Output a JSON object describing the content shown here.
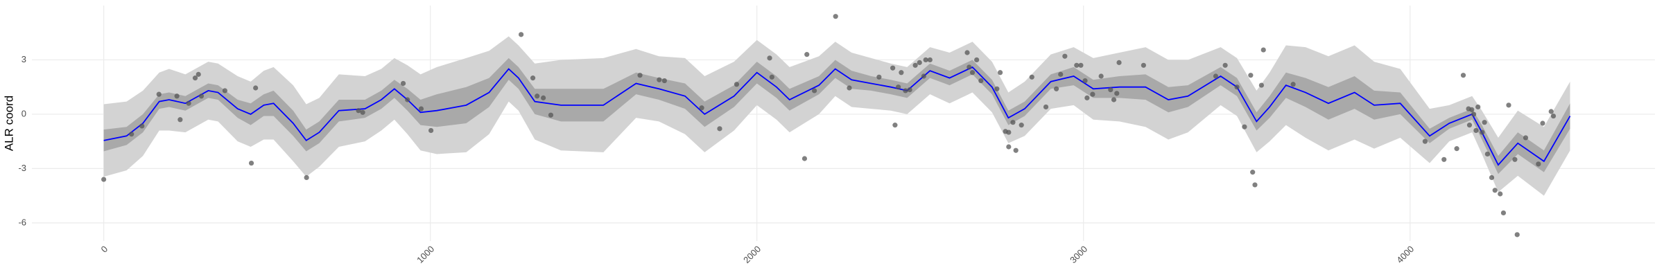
{
  "chart_data": {
    "type": "line",
    "y_label": "ALR coord",
    "xlim": [
      -220,
      4750
    ],
    "ylim": [
      -7,
      6
    ],
    "xticks": [
      0,
      1000,
      2000,
      3000,
      4000
    ],
    "yticks": [
      -6,
      -3,
      0,
      3
    ],
    "grid": true,
    "x": [
      0,
      70,
      120,
      170,
      200,
      250,
      320,
      350,
      410,
      450,
      490,
      520,
      580,
      620,
      660,
      720,
      800,
      850,
      890,
      930,
      970,
      1020,
      1110,
      1180,
      1240,
      1270,
      1320,
      1400,
      1530,
      1630,
      1700,
      1780,
      1840,
      1930,
      2000,
      2060,
      2100,
      2190,
      2240,
      2290,
      2350,
      2410,
      2460,
      2530,
      2590,
      2660,
      2720,
      2770,
      2820,
      2900,
      2970,
      3030,
      3110,
      3190,
      3260,
      3320,
      3420,
      3470,
      3530,
      3570,
      3620,
      3680,
      3750,
      3830,
      3890,
      3970,
      4060,
      4120,
      4190,
      4220,
      4270,
      4330,
      4410,
      4490
    ],
    "series": [
      {
        "color": "#0000ff",
        "values": [
          -1.45,
          -1.2,
          -0.5,
          0.7,
          0.8,
          0.6,
          1.3,
          1.2,
          0.3,
          0.0,
          0.5,
          0.6,
          -0.5,
          -1.45,
          -1.0,
          0.2,
          0.3,
          0.8,
          1.4,
          0.8,
          0.1,
          0.2,
          0.5,
          1.2,
          2.5,
          2.0,
          0.7,
          0.5,
          0.5,
          1.7,
          1.4,
          1.0,
          0.0,
          1.0,
          2.3,
          1.5,
          0.8,
          1.6,
          2.5,
          1.9,
          1.7,
          1.5,
          1.3,
          2.4,
          2.0,
          2.6,
          1.5,
          -0.2,
          0.3,
          1.8,
          2.1,
          1.4,
          1.5,
          1.5,
          0.8,
          1.0,
          2.1,
          1.5,
          -0.4,
          0.4,
          1.6,
          1.2,
          0.6,
          1.2,
          0.5,
          0.6,
          -1.2,
          -0.5,
          0.0,
          -1.0,
          -2.8,
          -1.6,
          -2.6,
          -0.1
        ]
      }
    ],
    "bands": [
      {
        "color": "#d3d3d3",
        "lower": [
          -3.45,
          -3.1,
          -2.3,
          -0.9,
          -0.9,
          -1.0,
          -0.3,
          -0.4,
          -1.5,
          -1.8,
          -1.4,
          -1.4,
          -2.6,
          -3.45,
          -2.9,
          -1.8,
          -1.5,
          -0.9,
          -0.3,
          -1.1,
          -2.0,
          -2.2,
          -2.1,
          -1.1,
          0.7,
          0.2,
          -1.4,
          -2.0,
          -2.1,
          -0.2,
          -0.4,
          -1.1,
          -2.1,
          -0.9,
          0.5,
          -0.3,
          -1.0,
          0.0,
          1.0,
          0.4,
          0.3,
          0.2,
          0.0,
          1.1,
          0.6,
          1.2,
          0.1,
          -1.6,
          -1.2,
          0.3,
          0.5,
          -0.3,
          -0.4,
          -0.7,
          -1.4,
          -1.0,
          0.5,
          -0.1,
          -2.1,
          -1.5,
          -0.6,
          -1.3,
          -2.0,
          -1.4,
          -1.9,
          -1.3,
          -2.7,
          -1.5,
          -1.0,
          -2.2,
          -4.3,
          -3.4,
          -4.5,
          -2.0
        ],
        "upper": [
          0.55,
          0.7,
          1.3,
          2.3,
          2.5,
          2.2,
          2.9,
          2.8,
          2.1,
          1.8,
          2.4,
          2.6,
          1.6,
          0.55,
          0.9,
          2.2,
          2.1,
          2.5,
          3.1,
          2.7,
          2.2,
          2.6,
          3.1,
          3.5,
          4.3,
          3.8,
          2.8,
          3.0,
          3.1,
          3.6,
          3.2,
          3.1,
          2.1,
          2.9,
          4.1,
          3.3,
          2.6,
          3.2,
          4.0,
          3.4,
          3.1,
          2.8,
          2.6,
          3.7,
          3.4,
          4.0,
          2.9,
          1.2,
          1.8,
          3.3,
          3.7,
          3.1,
          3.4,
          3.7,
          3.0,
          3.0,
          3.7,
          3.1,
          1.3,
          2.3,
          3.8,
          3.7,
          3.2,
          3.8,
          2.9,
          2.5,
          0.3,
          0.5,
          1.0,
          0.2,
          -1.3,
          0.2,
          -0.7,
          1.8
        ]
      },
      {
        "color": "#a9a9a9",
        "lower": [
          -2.05,
          -1.7,
          -1.0,
          0.3,
          0.4,
          0.2,
          0.9,
          0.8,
          -0.2,
          -0.6,
          -0.1,
          -0.1,
          -1.2,
          -2.05,
          -1.6,
          -0.4,
          -0.2,
          0.3,
          0.9,
          0.2,
          -0.6,
          -0.7,
          -0.5,
          0.4,
          1.9,
          1.4,
          0.0,
          -0.4,
          -0.4,
          1.1,
          0.8,
          0.3,
          -0.7,
          0.4,
          1.7,
          0.9,
          0.2,
          1.1,
          2.0,
          1.4,
          1.3,
          1.1,
          0.9,
          2.0,
          1.6,
          2.2,
          1.1,
          -0.6,
          -0.1,
          1.4,
          1.6,
          0.9,
          0.9,
          0.8,
          0.1,
          0.4,
          1.6,
          1.0,
          -0.9,
          -0.2,
          0.9,
          0.4,
          -0.3,
          0.3,
          -0.3,
          0.0,
          -1.6,
          -0.8,
          -0.3,
          -1.4,
          -3.3,
          -2.2,
          -3.2,
          -0.8
        ],
        "upper": [
          -0.85,
          -0.7,
          0.0,
          1.1,
          1.2,
          1.0,
          1.7,
          1.6,
          0.8,
          0.6,
          1.1,
          1.3,
          0.2,
          -0.85,
          -0.4,
          0.8,
          0.8,
          1.3,
          1.9,
          1.4,
          0.8,
          1.1,
          1.5,
          2.0,
          3.1,
          2.6,
          1.4,
          1.4,
          1.4,
          2.3,
          2.0,
          1.7,
          0.7,
          1.6,
          2.9,
          2.1,
          1.4,
          2.1,
          3.0,
          2.4,
          2.1,
          1.9,
          1.7,
          2.8,
          2.4,
          3.0,
          1.9,
          0.2,
          0.7,
          2.2,
          2.6,
          1.9,
          2.1,
          2.2,
          1.5,
          1.6,
          2.6,
          2.0,
          0.1,
          1.0,
          2.3,
          2.0,
          1.5,
          2.1,
          1.3,
          1.2,
          -0.8,
          -0.2,
          0.3,
          -0.6,
          -2.3,
          -1.0,
          -2.0,
          0.6
        ]
      }
    ],
    "points": {
      "color": "#555555",
      "x": [
        0,
        85,
        117,
        169,
        224,
        234,
        260,
        280,
        290,
        299,
        371,
        452,
        465,
        621,
        780,
        793,
        917,
        930,
        972,
        1002,
        1278,
        1314,
        1327,
        1346,
        1369,
        1642,
        1701,
        1717,
        1831,
        1886,
        1938,
        2039,
        2046,
        2146,
        2153,
        2176,
        2241,
        2283,
        2374,
        2416,
        2423,
        2433,
        2442,
        2455,
        2468,
        2485,
        2498,
        2511,
        2517,
        2530,
        2644,
        2650,
        2660,
        2673,
        2686,
        2735,
        2745,
        2761,
        2771,
        2771,
        2784,
        2793,
        2810,
        2842,
        2885,
        2917,
        2930,
        2943,
        2979,
        2992,
        3005,
        3011,
        3028,
        3054,
        3083,
        3093,
        3102,
        3109,
        3184,
        3405,
        3434,
        3470,
        3493,
        3512,
        3518,
        3525,
        3545,
        3551,
        3642,
        4046,
        4104,
        4143,
        4163,
        4179,
        4182,
        4189,
        4195,
        4202,
        4208,
        4221,
        4228,
        4237,
        4250,
        4260,
        4276,
        4286,
        4302,
        4321,
        4328,
        4354,
        4393,
        4406,
        4432,
        4439
      ],
      "y": [
        -3.6,
        -1.1,
        -0.65,
        1.1,
        1.0,
        -0.3,
        0.6,
        2.0,
        2.2,
        1.0,
        1.3,
        -2.7,
        1.45,
        -3.5,
        0.2,
        0.1,
        1.7,
        0.8,
        0.3,
        -0.9,
        4.4,
        2.0,
        1.0,
        0.9,
        -0.05,
        2.15,
        1.9,
        1.85,
        0.35,
        -0.8,
        1.65,
        3.1,
        2.05,
        -2.45,
        3.3,
        1.3,
        5.4,
        1.45,
        2.05,
        2.55,
        -0.6,
        1.5,
        2.3,
        1.3,
        1.35,
        2.7,
        2.85,
        2.1,
        3.0,
        3.0,
        3.4,
        2.6,
        2.3,
        3.0,
        1.85,
        1.4,
        2.3,
        -0.95,
        -1.0,
        -1.8,
        -0.45,
        -2.0,
        -0.6,
        2.05,
        0.4,
        1.4,
        2.2,
        3.2,
        2.7,
        2.7,
        1.85,
        0.9,
        1.1,
        2.1,
        1.35,
        0.8,
        1.15,
        2.85,
        2.7,
        2.1,
        2.7,
        1.5,
        -0.7,
        2.15,
        -3.2,
        -3.9,
        1.6,
        3.55,
        1.65,
        -1.5,
        -2.5,
        -1.9,
        2.15,
        0.3,
        -0.6,
        0.25,
        0.0,
        -0.9,
        0.4,
        -1.0,
        -0.45,
        -2.2,
        -3.5,
        -4.2,
        -4.4,
        -5.45,
        0.5,
        -2.5,
        -6.65,
        -1.3,
        -2.75,
        -0.5,
        0.15,
        -0.1
      ]
    }
  }
}
